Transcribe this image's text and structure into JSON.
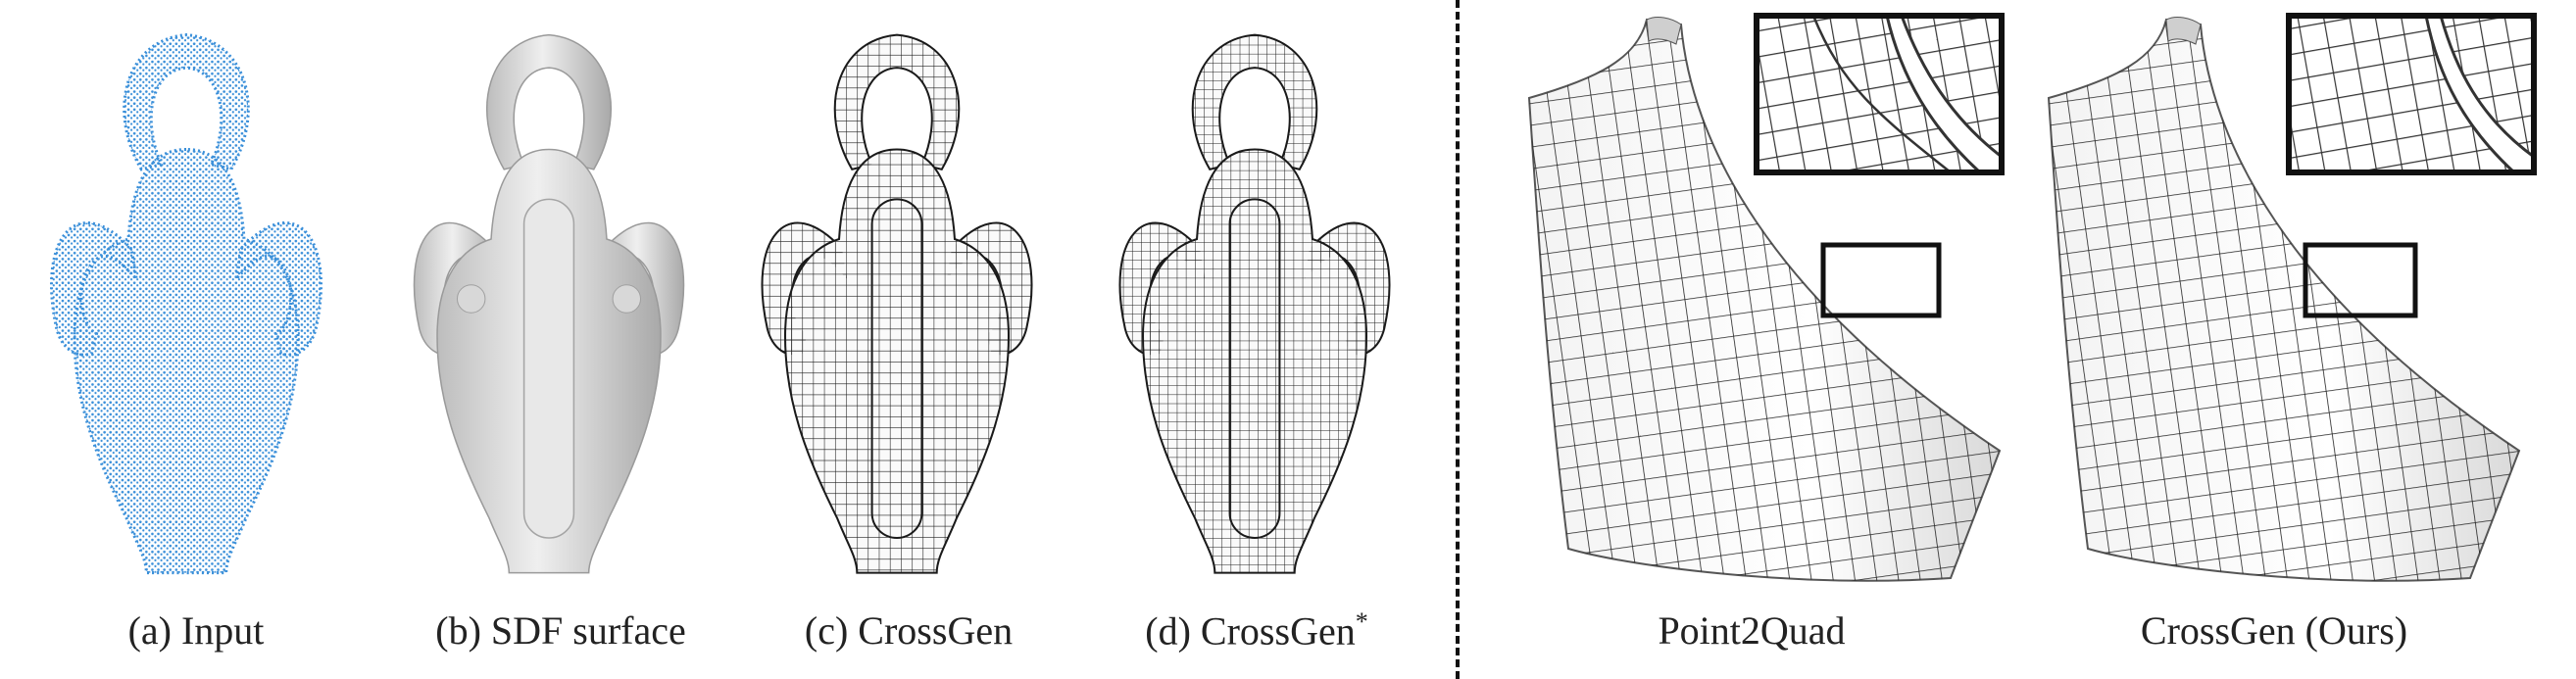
{
  "captions": {
    "input": "(a) Input",
    "sdf": "(b) SDF surface",
    "crossgen": "(c) CrossGen",
    "crossgen_star": "(d) CrossGen",
    "crossgen_star_sup": "*",
    "point2quad": "Point2Quad",
    "crossgen_ours": "CrossGen (Ours)"
  },
  "colors": {
    "point_cloud": "#3a8fd9",
    "surface_gray": "#e0e0e0",
    "mesh_line": "#1a1a1a",
    "divider": "#111111"
  }
}
